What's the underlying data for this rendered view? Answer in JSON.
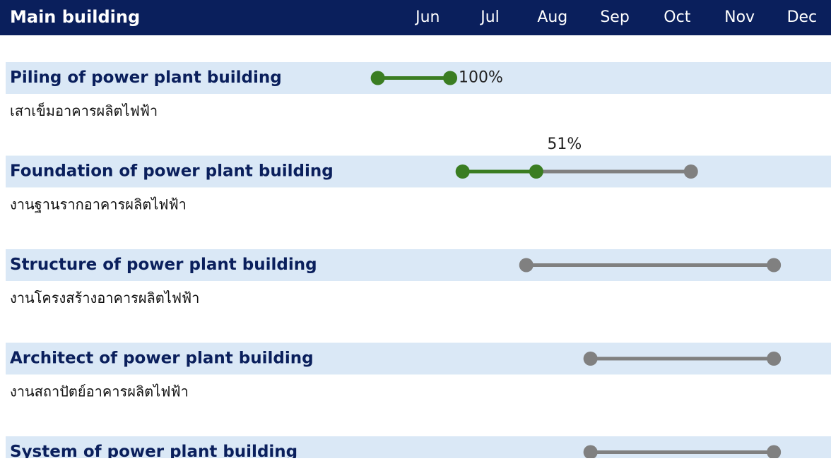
{
  "chart_data": {
    "type": "gantt",
    "title": "Main building",
    "xlim": [
      5,
      12.5
    ],
    "xticks": [
      {
        "value": 6,
        "label": "Jun"
      },
      {
        "value": 7,
        "label": "Jul"
      },
      {
        "value": 8,
        "label": "Aug"
      },
      {
        "value": 9,
        "label": "Sep"
      },
      {
        "value": 10,
        "label": "Oct"
      },
      {
        "value": 11,
        "label": "Nov"
      },
      {
        "value": 12,
        "label": "Dec"
      }
    ],
    "done_color": "#3a7d22",
    "plan_color": "#808080",
    "tasks": [
      {
        "name": "Piling of power plant building",
        "subtitle": "เสาเข็มอาคารผลิตไฟฟ้า",
        "start": 5.2,
        "end": 6.36,
        "actual_end": 6.36,
        "progress": 100,
        "progress_label": "100%"
      },
      {
        "name": "Foundation of power plant building",
        "subtitle": "งานฐานรากอาคารผลิตไฟฟ้า",
        "start": 6.56,
        "end": 10.22,
        "actual_end": 7.74,
        "progress": 51,
        "progress_label": "51%"
      },
      {
        "name": "Structure of power plant building",
        "subtitle": "งานโครงสร้างอาคารผลิตไฟฟ้า",
        "start": 7.58,
        "end": 11.55
      },
      {
        "name": "Architect of power plant building",
        "subtitle": "งานสถาปัตย์อาคารผลิตไฟฟ้า",
        "start": 8.61,
        "end": 11.55
      },
      {
        "name": "System of power plant building",
        "start": 8.61,
        "end": 11.55
      }
    ]
  }
}
